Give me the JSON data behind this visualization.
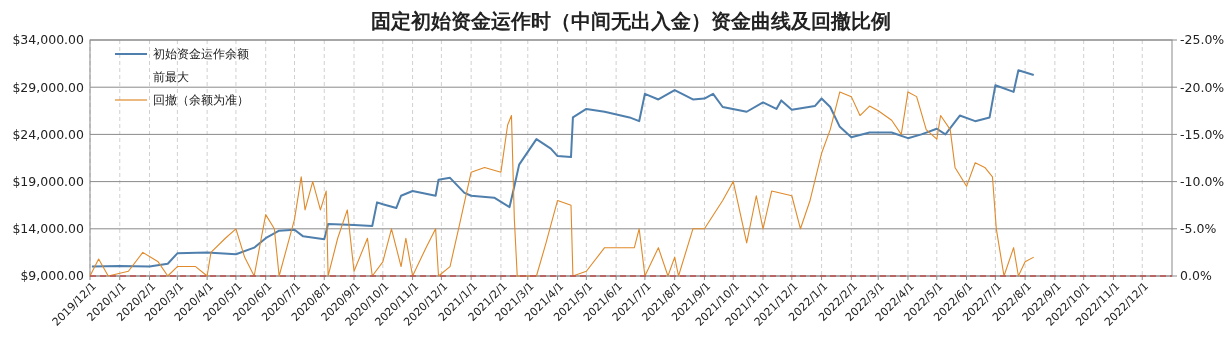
{
  "chart_data": {
    "type": "line",
    "title": "固定初始资金运作时（中间无出入金）资金曲线及回撤比例",
    "xlim": [
      "2019-12-01",
      "2023-01-01"
    ],
    "xticks": [
      {
        "value": "2019-12-01",
        "label": "2019/12/1"
      },
      {
        "value": "2020-01-01",
        "label": "2020/1/1"
      },
      {
        "value": "2020-02-01",
        "label": "2020/2/1"
      },
      {
        "value": "2020-03-01",
        "label": "2020/3/1"
      },
      {
        "value": "2020-04-01",
        "label": "2020/4/1"
      },
      {
        "value": "2020-05-01",
        "label": "2020/5/1"
      },
      {
        "value": "2020-06-01",
        "label": "2020/6/1"
      },
      {
        "value": "2020-07-01",
        "label": "2020/7/1"
      },
      {
        "value": "2020-08-01",
        "label": "2020/8/1"
      },
      {
        "value": "2020-09-01",
        "label": "2020/9/1"
      },
      {
        "value": "2020-10-01",
        "label": "2020/10/1"
      },
      {
        "value": "2020-11-01",
        "label": "2020/11/1"
      },
      {
        "value": "2020-12-01",
        "label": "2020/12/1"
      },
      {
        "value": "2021-01-01",
        "label": "2021/1/1"
      },
      {
        "value": "2021-02-01",
        "label": "2021/2/1"
      },
      {
        "value": "2021-03-01",
        "label": "2021/3/1"
      },
      {
        "value": "2021-04-01",
        "label": "2021/4/1"
      },
      {
        "value": "2021-05-01",
        "label": "2021/5/1"
      },
      {
        "value": "2021-06-01",
        "label": "2021/6/1"
      },
      {
        "value": "2021-07-01",
        "label": "2021/7/1"
      },
      {
        "value": "2021-08-01",
        "label": "2021/8/1"
      },
      {
        "value": "2021-09-01",
        "label": "2021/9/1"
      },
      {
        "value": "2021-10-01",
        "label": "2021/10/1"
      },
      {
        "value": "2021-11-01",
        "label": "2021/11/1"
      },
      {
        "value": "2021-12-01",
        "label": "2021/12/1"
      },
      {
        "value": "2022-01-01",
        "label": "2022/1/1"
      },
      {
        "value": "2022-02-01",
        "label": "2022/2/1"
      },
      {
        "value": "2022-03-01",
        "label": "2022/3/1"
      },
      {
        "value": "2022-04-01",
        "label": "2022/4/1"
      },
      {
        "value": "2022-05-01",
        "label": "2022/5/1"
      },
      {
        "value": "2022-06-01",
        "label": "2022/6/1"
      },
      {
        "value": "2022-07-01",
        "label": "2022/7/1"
      },
      {
        "value": "2022-08-01",
        "label": "2022/8/1"
      },
      {
        "value": "2022-09-01",
        "label": "2022/9/1"
      },
      {
        "value": "2022-10-01",
        "label": "2022/10/1"
      },
      {
        "value": "2022-11-01",
        "label": "2022/11/1"
      },
      {
        "value": "2022-12-01",
        "label": "2022/12/1"
      }
    ],
    "ylim": [
      9000,
      34000
    ],
    "yticks": [
      {
        "value": 9000,
        "label": "$9,000.00"
      },
      {
        "value": 14000,
        "label": "$14,000.00"
      },
      {
        "value": 19000,
        "label": "$19,000.00"
      },
      {
        "value": 24000,
        "label": "$24,000.00"
      },
      {
        "value": 29000,
        "label": "$29,000.00"
      },
      {
        "value": 34000,
        "label": "$34,000.00"
      }
    ],
    "y2lim": [
      0,
      -25
    ],
    "y2ticks": [
      {
        "value": 0,
        "label": "0.0%"
      },
      {
        "value": -5,
        "label": "-5.0%"
      },
      {
        "value": -10,
        "label": "-10.0%"
      },
      {
        "value": -15,
        "label": "-15.0%"
      },
      {
        "value": -20,
        "label": "-20.0%"
      },
      {
        "value": -25,
        "label": "-25.0%"
      }
    ],
    "grid": true,
    "legend": "top left",
    "annotations": [
      "前最大"
    ],
    "ref_lines": [
      {
        "axis": "y2",
        "value": 0,
        "color": "#c0504d",
        "line_style": "dashed"
      }
    ],
    "series": [
      {
        "name": "初始资金运作余额",
        "color": "#4f7fad",
        "axis": "y",
        "x": [
          "2019-12-03",
          "2020-01-01",
          "2020-02-01",
          "2020-02-20",
          "2020-03-01",
          "2020-04-01",
          "2020-05-01",
          "2020-05-20",
          "2020-06-01",
          "2020-06-15",
          "2020-07-01",
          "2020-07-10",
          "2020-08-01",
          "2020-08-05",
          "2020-09-01",
          "2020-09-20",
          "2020-09-25",
          "2020-10-01",
          "2020-10-15",
          "2020-10-20",
          "2020-11-01",
          "2020-11-25",
          "2020-11-28",
          "2020-12-10",
          "2020-12-25",
          "2021-01-01",
          "2021-01-25",
          "2021-02-10",
          "2021-02-15",
          "2021-02-20",
          "2021-03-10",
          "2021-03-25",
          "2021-04-01",
          "2021-04-15",
          "2021-04-17",
          "2021-05-01",
          "2021-05-20",
          "2021-06-15",
          "2021-06-25",
          "2021-07-01",
          "2021-07-15",
          "2021-08-01",
          "2021-08-20",
          "2021-09-01",
          "2021-09-10",
          "2021-09-20",
          "2021-10-15",
          "2021-11-01",
          "2021-11-15",
          "2021-11-20",
          "2021-12-01",
          "2021-12-25",
          "2022-01-01",
          "2022-01-10",
          "2022-01-20",
          "2022-02-01",
          "2022-02-20",
          "2022-03-15",
          "2022-04-01",
          "2022-04-15",
          "2022-05-01",
          "2022-05-10",
          "2022-05-25",
          "2022-06-10",
          "2022-06-25",
          "2022-07-01",
          "2022-07-20",
          "2022-07-25",
          "2022-08-10"
        ],
        "values": [
          10000,
          10050,
          10000,
          10300,
          11400,
          11500,
          11300,
          12000,
          13000,
          13800,
          13900,
          13200,
          12900,
          14500,
          14400,
          14300,
          16800,
          16600,
          16200,
          17500,
          18000,
          17500,
          19200,
          19400,
          17800,
          17500,
          17300,
          16300,
          18500,
          20800,
          23500,
          22500,
          21700,
          21600,
          25800,
          26700,
          26400,
          25800,
          25400,
          28300,
          27700,
          28700,
          27700,
          27800,
          28300,
          26900,
          26400,
          27400,
          26700,
          27600,
          26600,
          27000,
          27800,
          26900,
          24800,
          23700,
          24200,
          24200,
          23600,
          24000,
          24600,
          24000,
          26000,
          25400,
          25800,
          29200,
          28500,
          30800,
          30300
        ]
      },
      {
        "name": "回撤（余额为准）",
        "color": "#e08a2a",
        "axis": "y2",
        "x": [
          "2019-12-01",
          "2019-12-10",
          "2019-12-20",
          "2020-01-10",
          "2020-01-25",
          "2020-02-10",
          "2020-02-20",
          "2020-03-01",
          "2020-03-20",
          "2020-04-01",
          "2020-04-05",
          "2020-04-20",
          "2020-05-01",
          "2020-05-10",
          "2020-05-20",
          "2020-06-01",
          "2020-06-10",
          "2020-06-15",
          "2020-07-01",
          "2020-07-08",
          "2020-07-12",
          "2020-07-20",
          "2020-07-28",
          "2020-08-03",
          "2020-08-05",
          "2020-08-15",
          "2020-08-25",
          "2020-09-01",
          "2020-09-15",
          "2020-09-20",
          "2020-10-01",
          "2020-10-10",
          "2020-10-20",
          "2020-10-25",
          "2020-11-01",
          "2020-11-15",
          "2020-11-25",
          "2020-11-28",
          "2020-12-10",
          "2020-12-20",
          "2021-01-01",
          "2021-01-15",
          "2021-02-01",
          "2021-02-08",
          "2021-02-12",
          "2021-02-15",
          "2021-02-18",
          "2021-03-10",
          "2021-03-20",
          "2021-04-01",
          "2021-04-15",
          "2021-04-17",
          "2021-05-01",
          "2021-05-20",
          "2021-06-20",
          "2021-06-25",
          "2021-07-01",
          "2021-07-15",
          "2021-07-25",
          "2021-08-01",
          "2021-08-05",
          "2021-08-20",
          "2021-09-01",
          "2021-09-20",
          "2021-10-01",
          "2021-10-15",
          "2021-10-25",
          "2021-11-01",
          "2021-11-10",
          "2021-12-01",
          "2021-12-10",
          "2021-12-20",
          "2022-01-01",
          "2022-01-10",
          "2022-01-20",
          "2022-02-01",
          "2022-02-10",
          "2022-02-20",
          "2022-03-01",
          "2022-03-15",
          "2022-03-25",
          "2022-04-01",
          "2022-04-10",
          "2022-04-20",
          "2022-05-01",
          "2022-05-05",
          "2022-05-15",
          "2022-05-20",
          "2022-06-01",
          "2022-06-10",
          "2022-06-20",
          "2022-06-28",
          "2022-07-02",
          "2022-07-10",
          "2022-07-20",
          "2022-07-25",
          "2022-08-01",
          "2022-08-10"
        ],
        "values": [
          0,
          -1.8,
          0,
          -0.5,
          -2.5,
          -1.5,
          0,
          -1,
          -1,
          0,
          -2.5,
          -4,
          -5,
          -2,
          0,
          -6.5,
          -5,
          0,
          -6,
          -10.5,
          -7,
          -10,
          -7,
          -9,
          0,
          -4,
          -7,
          -0.5,
          -4,
          0,
          -1.5,
          -5,
          -1,
          -4,
          0,
          -3,
          -5,
          0,
          -1,
          -5.5,
          -11,
          -11.5,
          -11,
          -16,
          -17,
          -6,
          0,
          0,
          -3.5,
          -8,
          -7.5,
          0,
          -0.5,
          -3,
          -3,
          -5,
          0,
          -3,
          0,
          -2,
          0,
          -5,
          -5,
          -8,
          -10,
          -3.5,
          -8.5,
          -5,
          -9,
          -8.5,
          -5,
          -8,
          -13,
          -15.5,
          -19.5,
          -19,
          -17,
          -18,
          -17.5,
          -16.5,
          -15,
          -19.5,
          -19,
          -15.5,
          -14.5,
          -17,
          -15.5,
          -11.5,
          -9.5,
          -12,
          -11.5,
          -10.5,
          -5,
          0,
          -3,
          0,
          -1.5,
          -2
        ]
      }
    ]
  }
}
